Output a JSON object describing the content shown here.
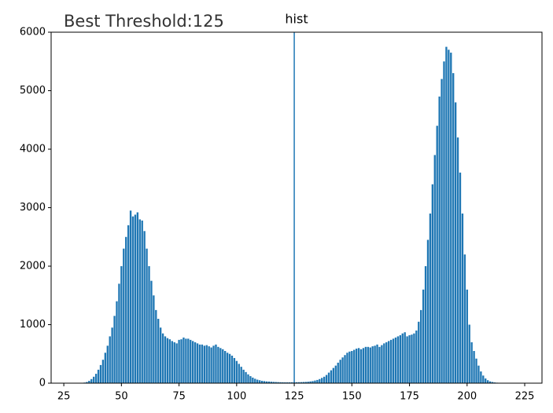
{
  "chart_data": {
    "type": "bar",
    "title": "hist",
    "annotation": "Best Threshold:125",
    "threshold_line": 125,
    "color": "#1f77b4",
    "line_color": "#1f77b4",
    "x": [
      33,
      34,
      35,
      36,
      37,
      38,
      39,
      40,
      41,
      42,
      43,
      44,
      45,
      46,
      47,
      48,
      49,
      50,
      51,
      52,
      53,
      54,
      55,
      56,
      57,
      58,
      59,
      60,
      61,
      62,
      63,
      64,
      65,
      66,
      67,
      68,
      69,
      70,
      71,
      72,
      73,
      74,
      75,
      76,
      77,
      78,
      79,
      80,
      81,
      82,
      83,
      84,
      85,
      86,
      87,
      88,
      89,
      90,
      91,
      92,
      93,
      94,
      95,
      96,
      97,
      98,
      99,
      100,
      101,
      102,
      103,
      104,
      105,
      106,
      107,
      108,
      109,
      110,
      111,
      112,
      113,
      114,
      115,
      116,
      117,
      118,
      119,
      120,
      121,
      122,
      123,
      124,
      125,
      126,
      127,
      128,
      129,
      130,
      131,
      132,
      133,
      134,
      135,
      136,
      137,
      138,
      139,
      140,
      141,
      142,
      143,
      144,
      145,
      146,
      147,
      148,
      149,
      150,
      151,
      152,
      153,
      154,
      155,
      156,
      157,
      158,
      159,
      160,
      161,
      162,
      163,
      164,
      165,
      166,
      167,
      168,
      169,
      170,
      171,
      172,
      173,
      174,
      175,
      176,
      177,
      178,
      179,
      180,
      181,
      182,
      183,
      184,
      185,
      186,
      187,
      188,
      189,
      190,
      191,
      192,
      193,
      194,
      195,
      196,
      197,
      198,
      199,
      200,
      201,
      202,
      203,
      204,
      205,
      206,
      207,
      208,
      209,
      210,
      211,
      212,
      213,
      214
    ],
    "values": [
      5,
      10,
      20,
      40,
      70,
      110,
      160,
      230,
      310,
      400,
      520,
      640,
      800,
      950,
      1150,
      1400,
      1700,
      2000,
      2300,
      2500,
      2700,
      2950,
      2850,
      2880,
      2920,
      2800,
      2780,
      2600,
      2300,
      2000,
      1750,
      1500,
      1250,
      1100,
      950,
      850,
      800,
      770,
      750,
      720,
      700,
      680,
      740,
      750,
      780,
      760,
      760,
      740,
      720,
      700,
      680,
      660,
      660,
      640,
      650,
      630,
      610,
      640,
      660,
      620,
      600,
      580,
      550,
      520,
      500,
      470,
      430,
      380,
      330,
      280,
      230,
      190,
      150,
      120,
      95,
      75,
      60,
      50,
      40,
      35,
      30,
      28,
      25,
      22,
      20,
      18,
      16,
      15,
      14,
      14,
      14,
      15,
      15,
      16,
      17,
      18,
      20,
      22,
      25,
      30,
      35,
      45,
      55,
      70,
      90,
      110,
      140,
      180,
      220,
      260,
      300,
      350,
      400,
      440,
      480,
      520,
      540,
      550,
      570,
      590,
      600,
      580,
      600,
      620,
      620,
      610,
      630,
      640,
      660,
      620,
      650,
      680,
      700,
      720,
      740,
      760,
      780,
      800,
      820,
      850,
      870,
      800,
      820,
      830,
      850,
      900,
      1050,
      1250,
      1600,
      2000,
      2450,
      2900,
      3400,
      3900,
      4400,
      4900,
      5200,
      5500,
      5750,
      5700,
      5650,
      5300,
      4800,
      4200,
      3600,
      2900,
      2200,
      1600,
      1000,
      700,
      550,
      420,
      300,
      200,
      130,
      80,
      50,
      30,
      20,
      12,
      8,
      5
    ],
    "xlim": [
      19.5,
      232.5
    ],
    "ylim": [
      0,
      6000
    ],
    "xticks": [
      25,
      50,
      75,
      100,
      125,
      150,
      175,
      200,
      225
    ],
    "yticks": [
      0,
      1000,
      2000,
      3000,
      4000,
      5000,
      6000
    ]
  }
}
